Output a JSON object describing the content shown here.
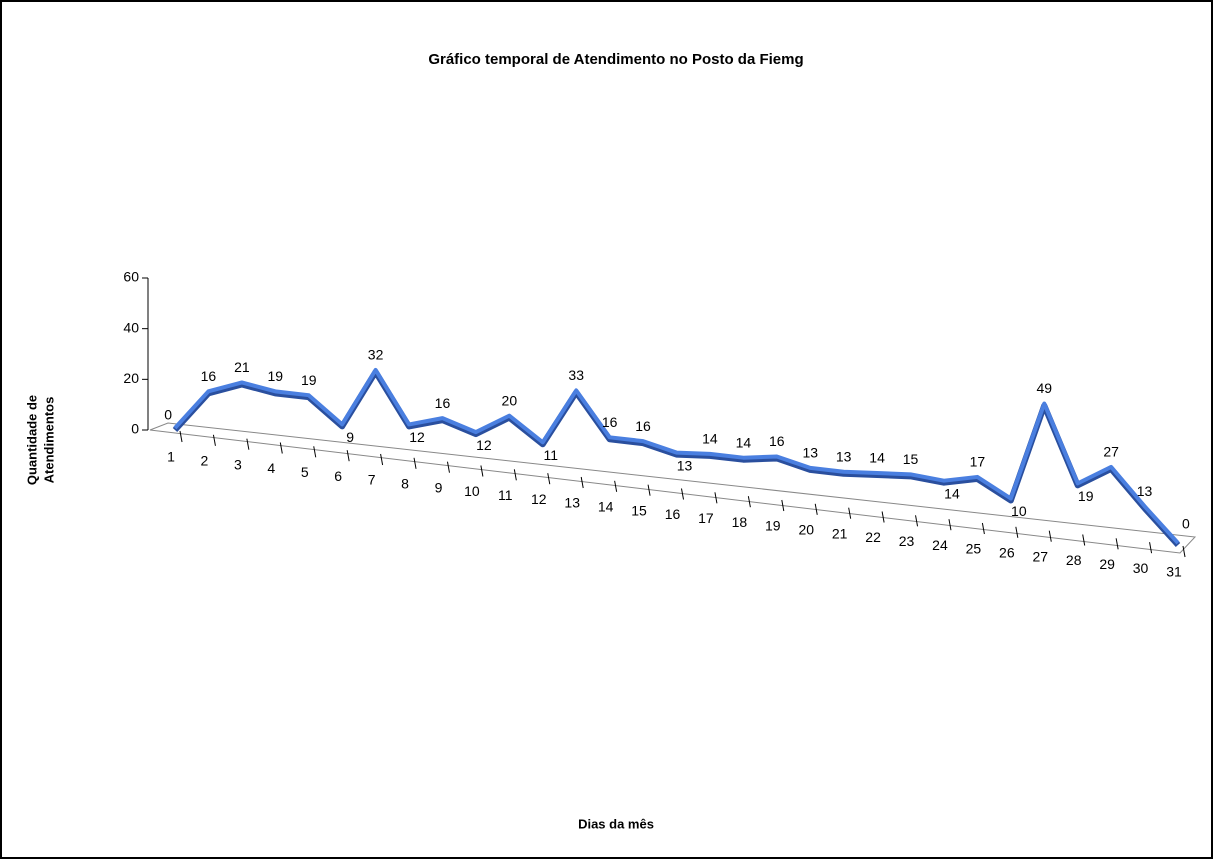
{
  "chart_data": {
    "type": "line",
    "title": "Gráfico temporal de Atendimento no Posto da Fiemg",
    "x_label": "Dias da mês",
    "y_label": [
      "Quantidade de",
      "Atendimentos"
    ],
    "categories": [
      "1",
      "2",
      "3",
      "4",
      "5",
      "6",
      "7",
      "8",
      "9",
      "10",
      "11",
      "12",
      "13",
      "14",
      "15",
      "16",
      "17",
      "18",
      "19",
      "20",
      "21",
      "22",
      "23",
      "24",
      "25",
      "26",
      "27",
      "28",
      "29",
      "30",
      "31"
    ],
    "series": [
      {
        "name": "Atendimentos",
        "color": "#4a7fe0",
        "values": [
          0,
          16,
          21,
          19,
          19,
          9,
          32,
          12,
          16,
          12,
          20,
          11,
          33,
          16,
          16,
          13,
          14,
          14,
          16,
          13,
          13,
          14,
          15,
          14,
          17,
          10,
          49,
          19,
          27,
          13,
          0
        ]
      }
    ],
    "ylim": [
      0,
      60
    ],
    "yticks": [
      0,
      20,
      40,
      60
    ]
  }
}
